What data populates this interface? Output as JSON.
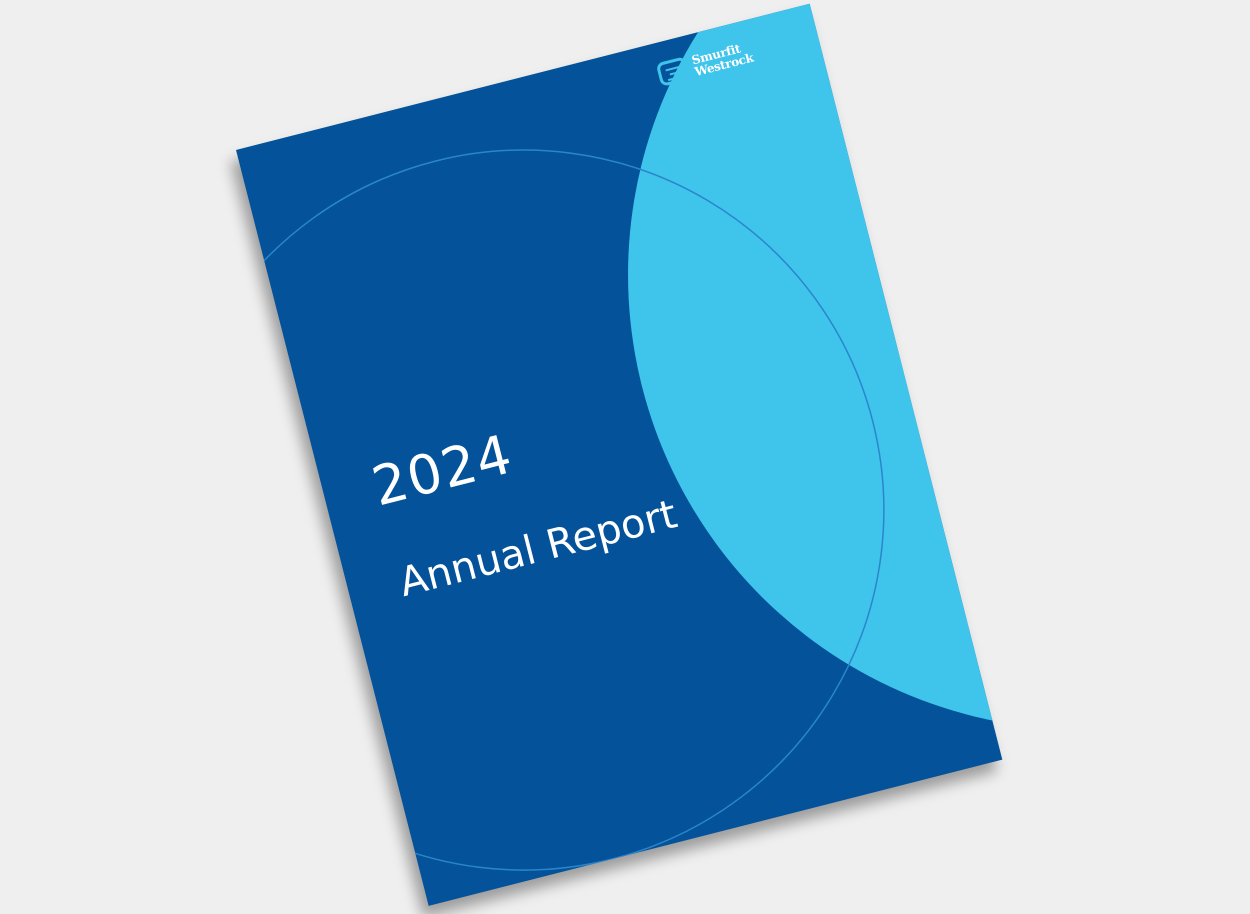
{
  "cover": {
    "brand": {
      "line1": "Smurfit",
      "line2": "Westrock",
      "icon": "smurfit-westrock-logo-icon"
    },
    "year": "2024",
    "title": "Annual Report"
  },
  "colors": {
    "background": "#efefef",
    "cover_blue": "#03529a",
    "light_blue": "#3fc4eb",
    "outline_circle": "#2a86cc"
  }
}
